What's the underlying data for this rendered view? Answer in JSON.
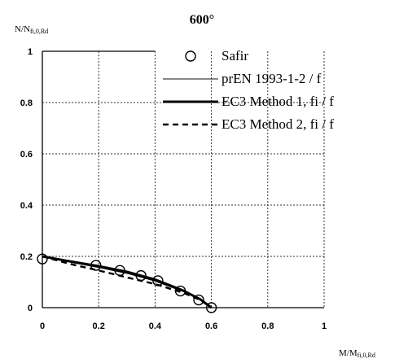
{
  "chart_data": {
    "type": "line",
    "title": "600°",
    "ylabel": "N/N",
    "ylabel_sub": "fi,0,Rd",
    "xlabel": "M/M",
    "xlabel_sub": "fi,0,Rd",
    "xlim": [
      0,
      1
    ],
    "ylim": [
      0,
      1
    ],
    "x_ticks": [
      "0",
      "0.2",
      "0.4",
      "0.6",
      "0.8",
      "1"
    ],
    "y_ticks": [
      "0",
      "0.2",
      "0.4",
      "0.6",
      "0.8",
      "1"
    ],
    "grid": true,
    "legend_position": "top-right",
    "series": [
      {
        "name": "Safir",
        "kind": "markers",
        "x": [
          0.0,
          0.19,
          0.275,
          0.35,
          0.41,
          0.49,
          0.555,
          0.6
        ],
        "y": [
          0.19,
          0.165,
          0.145,
          0.125,
          0.105,
          0.065,
          0.03,
          0.0
        ]
      },
      {
        "name": "prEN 1993-1-2 / f",
        "kind": "thin",
        "x": [
          0.0,
          0.1,
          0.2,
          0.3,
          0.4,
          0.5,
          0.56,
          0.6
        ],
        "y": [
          0.2,
          0.183,
          0.165,
          0.143,
          0.113,
          0.07,
          0.035,
          0.0
        ]
      },
      {
        "name": "EC3 Method 1, fi / f",
        "kind": "thick",
        "x": [
          0.0,
          0.1,
          0.2,
          0.3,
          0.4,
          0.5,
          0.56,
          0.6
        ],
        "y": [
          0.2,
          0.18,
          0.16,
          0.137,
          0.107,
          0.066,
          0.033,
          0.0
        ]
      },
      {
        "name": "EC3 Method 2, fi / f",
        "kind": "dashed",
        "x": [
          0.0,
          0.1,
          0.2,
          0.3,
          0.4,
          0.5,
          0.56,
          0.6
        ],
        "y": [
          0.2,
          0.17,
          0.145,
          0.118,
          0.092,
          0.058,
          0.03,
          0.0
        ]
      }
    ]
  }
}
